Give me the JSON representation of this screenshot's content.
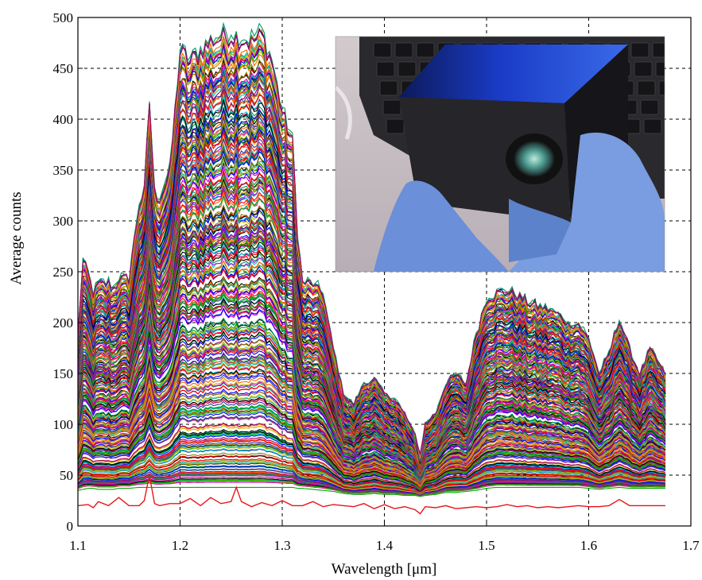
{
  "chart_data": {
    "type": "line",
    "title": "",
    "xlabel": "Wavelength [μm]",
    "ylabel": "Average counts",
    "xlim": [
      1.1,
      1.7
    ],
    "ylim": [
      0,
      500
    ],
    "x_ticks": [
      "1.1",
      "1.2",
      "1.3",
      "1.4",
      "1.5",
      "1.6",
      "1.7"
    ],
    "y_ticks": [
      "0",
      "50",
      "100",
      "150",
      "200",
      "250",
      "300",
      "350",
      "400",
      "450",
      "500"
    ],
    "grid": true,
    "x_range_data": [
      1.1,
      1.675
    ],
    "envelope": {
      "x": [
        1.1,
        1.105,
        1.11,
        1.115,
        1.12,
        1.13,
        1.135,
        1.14,
        1.15,
        1.16,
        1.165,
        1.17,
        1.175,
        1.18,
        1.19,
        1.2,
        1.21,
        1.22,
        1.23,
        1.24,
        1.25,
        1.26,
        1.27,
        1.28,
        1.29,
        1.3,
        1.31,
        1.315,
        1.32,
        1.33,
        1.34,
        1.35,
        1.36,
        1.37,
        1.38,
        1.39,
        1.4,
        1.41,
        1.42,
        1.43,
        1.435,
        1.44,
        1.45,
        1.46,
        1.47,
        1.48,
        1.49,
        1.5,
        1.51,
        1.52,
        1.53,
        1.54,
        1.55,
        1.56,
        1.57,
        1.58,
        1.59,
        1.6,
        1.61,
        1.62,
        1.63,
        1.64,
        1.65,
        1.66,
        1.675
      ],
      "upper": [
        190,
        262,
        250,
        230,
        240,
        240,
        235,
        245,
        245,
        320,
        330,
        420,
        330,
        325,
        350,
        470,
        460,
        470,
        480,
        485,
        487,
        482,
        480,
        487,
        460,
        410,
        380,
        290,
        240,
        240,
        230,
        175,
        130,
        120,
        140,
        145,
        130,
        125,
        110,
        90,
        70,
        100,
        110,
        140,
        150,
        140,
        190,
        225,
        230,
        232,
        228,
        222,
        218,
        215,
        210,
        200,
        200,
        185,
        150,
        170,
        205,
        175,
        150,
        175,
        150
      ],
      "lower": [
        35,
        36,
        37,
        37,
        36,
        36,
        36,
        37,
        37,
        38,
        38,
        38,
        38,
        38,
        38,
        38,
        38,
        38,
        38,
        38,
        38,
        38,
        38,
        38,
        38,
        38,
        38,
        37,
        37,
        36,
        35,
        34,
        32,
        31,
        31,
        32,
        31,
        31,
        30,
        30,
        29,
        30,
        31,
        33,
        33,
        34,
        35,
        37,
        38,
        38,
        38,
        38,
        38,
        38,
        38,
        38,
        38,
        37,
        36,
        37,
        38,
        37,
        37,
        37,
        37
      ]
    },
    "series_count_visible": 300,
    "highlight_series": {
      "name": "",
      "color": "#e8141b",
      "x": [
        1.1,
        1.11,
        1.115,
        1.12,
        1.13,
        1.14,
        1.15,
        1.16,
        1.165,
        1.17,
        1.175,
        1.18,
        1.19,
        1.2,
        1.21,
        1.22,
        1.23,
        1.24,
        1.25,
        1.255,
        1.26,
        1.27,
        1.28,
        1.29,
        1.3,
        1.31,
        1.32,
        1.33,
        1.34,
        1.35,
        1.36,
        1.37,
        1.38,
        1.39,
        1.4,
        1.41,
        1.42,
        1.43,
        1.435,
        1.44,
        1.45,
        1.46,
        1.47,
        1.48,
        1.49,
        1.5,
        1.51,
        1.52,
        1.53,
        1.54,
        1.55,
        1.56,
        1.57,
        1.58,
        1.59,
        1.6,
        1.61,
        1.62,
        1.63,
        1.64,
        1.65,
        1.66,
        1.675
      ],
      "y": [
        20,
        21,
        18,
        24,
        20,
        28,
        20,
        20,
        25,
        50,
        22,
        20,
        22,
        22,
        27,
        20,
        28,
        22,
        24,
        38,
        24,
        19,
        23,
        20,
        25,
        20,
        20,
        24,
        19,
        21,
        20,
        19,
        22,
        17,
        21,
        17,
        19,
        16,
        12,
        19,
        18,
        20,
        17,
        18,
        19,
        18,
        19,
        21,
        19,
        20,
        18,
        19,
        18,
        19,
        20,
        19,
        19,
        20,
        26,
        20,
        20,
        20,
        20
      ]
    },
    "colors": [
      "#ff0000",
      "#00aa00",
      "#0000ff",
      "#00c8c8",
      "#c800c8",
      "#c8b400",
      "#000000",
      "#7f7f00",
      "#ff6600",
      "#3333aa",
      "#009966",
      "#aa0066"
    ]
  },
  "inset_photo": {
    "subject": "Photo of a black cube-shaped sensor with a lens, held in a blue-gloved hand in front of a laptop keyboard",
    "colors": {
      "keyboard": "#2a2a2e",
      "cube_side": "#252428",
      "cube_top": "#1a3cc8",
      "glove": "#6b8fd8",
      "lens": "#5fa8a0",
      "background": "#c9c1c6"
    }
  }
}
